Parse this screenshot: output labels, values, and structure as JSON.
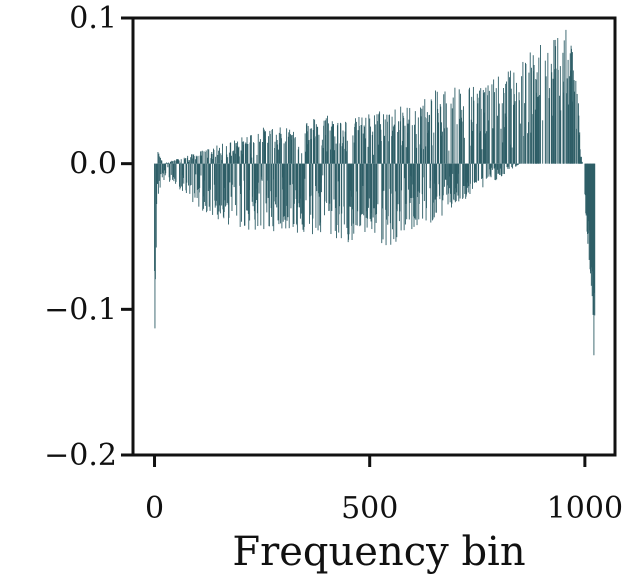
{
  "chart_data": {
    "type": "bar",
    "title": "",
    "xlabel": "Frequency bin",
    "ylabel": "",
    "xlim": [
      -50,
      1070
    ],
    "ylim": [
      -0.2,
      0.1
    ],
    "grid": false,
    "bar_color": "#2e5e67",
    "xticks": [
      {
        "value": 0,
        "label": "0"
      },
      {
        "value": 500,
        "label": "500"
      },
      {
        "value": 1000,
        "label": "1000"
      }
    ],
    "yticks": [
      {
        "value": 0.1,
        "label": "0.1"
      },
      {
        "value": 0.0,
        "label": "0.0"
      },
      {
        "value": -0.1,
        "label": "−0.1"
      },
      {
        "value": -0.2,
        "label": "−0.2"
      }
    ],
    "envelope": {
      "x": [
        0,
        3,
        6,
        10,
        20,
        50,
        100,
        150,
        200,
        250,
        300,
        350,
        400,
        450,
        500,
        550,
        600,
        650,
        700,
        750,
        800,
        850,
        900,
        950,
        970,
        985,
        990,
        995,
        1000,
        1010,
        1020,
        1023
      ],
      "max": [
        0.0,
        0.0,
        0.008,
        0.01,
        0.0,
        0.003,
        0.008,
        0.013,
        0.018,
        0.025,
        0.025,
        0.03,
        0.035,
        0.03,
        0.035,
        0.04,
        0.04,
        0.05,
        0.055,
        0.055,
        0.06,
        0.07,
        0.085,
        0.095,
        0.085,
        0.05,
        0.01,
        0.0,
        0.0,
        0.0,
        0.0,
        0.0
      ],
      "min": [
        -0.13,
        -0.08,
        -0.03,
        -0.02,
        -0.012,
        -0.015,
        -0.03,
        -0.04,
        -0.045,
        -0.048,
        -0.045,
        -0.05,
        -0.05,
        -0.055,
        -0.05,
        -0.06,
        -0.045,
        -0.04,
        -0.03,
        -0.02,
        -0.01,
        0.0,
        0.0,
        0.0,
        0.0,
        0.0,
        0.0,
        0.0,
        -0.03,
        -0.07,
        -0.12,
        -0.155
      ]
    }
  }
}
